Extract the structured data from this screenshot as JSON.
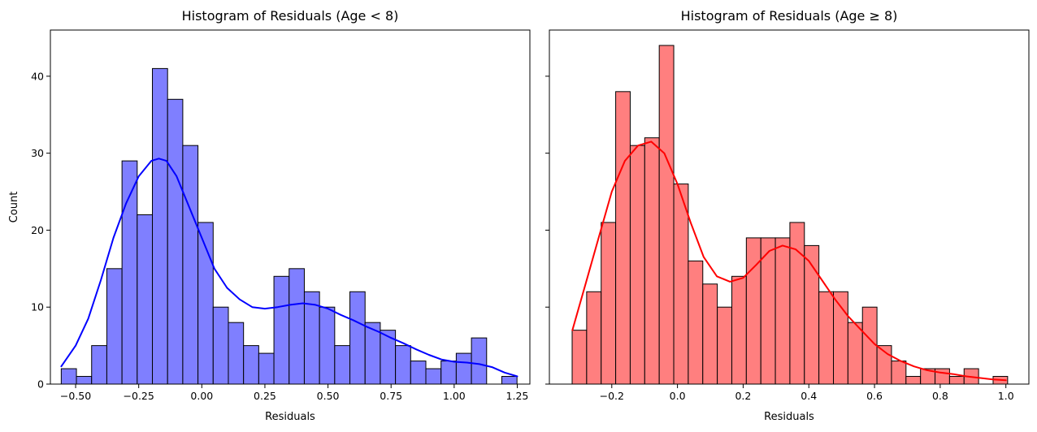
{
  "chart_data": [
    {
      "type": "histogram",
      "title": "Histogram of Residuals (Age < 8)",
      "xlabel": "Residuals",
      "ylabel": "Count",
      "xlim": [
        -0.6,
        1.3
      ],
      "ylim": [
        0,
        46
      ],
      "xticks": [
        -0.5,
        -0.25,
        0.0,
        0.25,
        0.5,
        0.75,
        1.0,
        1.25
      ],
      "xtick_labels": [
        "−0.50",
        "−0.25",
        "0.00",
        "0.25",
        "0.50",
        "0.75",
        "1.00",
        "1.25"
      ],
      "yticks": [
        0,
        10,
        20,
        30,
        40
      ],
      "ytick_labels": [
        "0",
        "10",
        "20",
        "30",
        "40"
      ],
      "bin_start": -0.557,
      "bin_width": 0.0602,
      "counts": [
        2,
        1,
        5,
        15,
        29,
        22,
        41,
        37,
        31,
        21,
        10,
        8,
        5,
        4,
        14,
        15,
        12,
        10,
        5,
        12,
        8,
        7,
        5,
        3,
        2,
        3,
        4,
        6,
        0,
        1
      ],
      "bar_color": "#7f7fff",
      "kde": {
        "color": "#0000ff",
        "x": [
          -0.557,
          -0.5,
          -0.45,
          -0.4,
          -0.35,
          -0.3,
          -0.25,
          -0.2,
          -0.17,
          -0.14,
          -0.1,
          -0.05,
          0.0,
          0.05,
          0.1,
          0.15,
          0.2,
          0.25,
          0.3,
          0.35,
          0.4,
          0.45,
          0.5,
          0.55,
          0.6,
          0.65,
          0.7,
          0.75,
          0.8,
          0.85,
          0.9,
          0.95,
          1.0,
          1.05,
          1.1,
          1.15,
          1.2,
          1.25
        ],
        "y": [
          2.3,
          5,
          8.5,
          13.5,
          19,
          23.5,
          27,
          29,
          29.3,
          29,
          27,
          23,
          19,
          15,
          12.5,
          11,
          10,
          9.8,
          10,
          10.3,
          10.5,
          10.3,
          9.8,
          9,
          8.3,
          7.5,
          6.8,
          6,
          5.3,
          4.5,
          3.8,
          3.2,
          2.9,
          2.8,
          2.6,
          2.2,
          1.5,
          1.0
        ]
      }
    },
    {
      "type": "histogram",
      "title": "Histogram of Residuals (Age ≥ 8)",
      "xlabel": "Residuals",
      "ylabel": "",
      "xlim": [
        -0.39,
        1.07
      ],
      "ylim": [
        0,
        46
      ],
      "xticks": [
        -0.2,
        0.0,
        0.2,
        0.4,
        0.6,
        0.8,
        1.0
      ],
      "xtick_labels": [
        "−0.2",
        "0.0",
        "0.2",
        "0.4",
        "0.6",
        "0.8",
        "1.0"
      ],
      "yticks": [
        0,
        10,
        20,
        30,
        40
      ],
      "ytick_labels": [],
      "bin_start": -0.3207,
      "bin_width": 0.0442,
      "counts": [
        7,
        12,
        21,
        38,
        31,
        32,
        44,
        26,
        16,
        13,
        10,
        14,
        19,
        19,
        19,
        21,
        18,
        12,
        12,
        8,
        10,
        5,
        3,
        1,
        2,
        2,
        1,
        2,
        0,
        1
      ],
      "bar_color": "#ff7f7f",
      "kde": {
        "color": "#ff0000",
        "x": [
          -0.32,
          -0.28,
          -0.24,
          -0.2,
          -0.16,
          -0.12,
          -0.08,
          -0.04,
          0.0,
          0.04,
          0.08,
          0.12,
          0.16,
          0.2,
          0.24,
          0.28,
          0.32,
          0.36,
          0.4,
          0.44,
          0.48,
          0.52,
          0.56,
          0.6,
          0.64,
          0.68,
          0.72,
          0.76,
          0.8,
          0.84,
          0.88,
          0.92,
          0.96,
          1.0
        ],
        "y": [
          7,
          13,
          19,
          25,
          29,
          31,
          31.5,
          30,
          26,
          21,
          16.5,
          14,
          13.3,
          13.8,
          15.5,
          17.3,
          18,
          17.5,
          16,
          13.5,
          11,
          8.8,
          7,
          5.2,
          3.9,
          3.0,
          2.3,
          1.8,
          1.5,
          1.3,
          1.0,
          0.8,
          0.6,
          0.5
        ]
      }
    }
  ]
}
